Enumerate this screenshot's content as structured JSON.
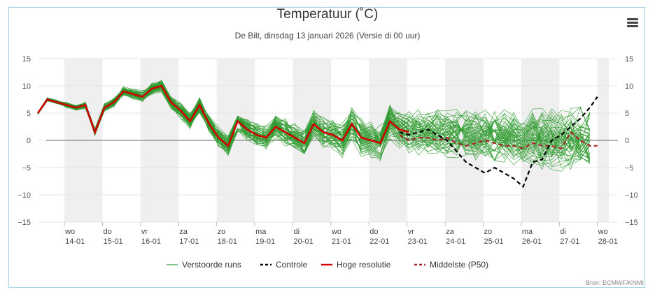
{
  "page": {
    "title": "Temperatuur (˚C)",
    "subtitle": "De Bilt, dinsdag 13 januari 2026 (Versie di 00 uur)",
    "credit": "Bron: ECMWF/KNMI",
    "menu_icon": "hamburger-menu-icon"
  },
  "chart_data": {
    "type": "line",
    "title": "Temperatuur (˚C)",
    "subtitle": "De Bilt, dinsdag 13 januari 2026 (Versie di 00 uur)",
    "ylim": [
      -15,
      15
    ],
    "yticks": [
      15,
      10,
      5,
      0,
      -5,
      -10,
      -15
    ],
    "xrange": [
      0,
      14.7
    ],
    "x_ticks": [
      {
        "x": 0.7,
        "day": "wo",
        "date": "14-01"
      },
      {
        "x": 1.7,
        "day": "do",
        "date": "15-01"
      },
      {
        "x": 2.7,
        "day": "vr",
        "date": "16-01"
      },
      {
        "x": 3.7,
        "day": "za",
        "date": "17-01"
      },
      {
        "x": 4.7,
        "day": "zo",
        "date": "18-01"
      },
      {
        "x": 5.7,
        "day": "ma",
        "date": "19-01"
      },
      {
        "x": 6.7,
        "day": "di",
        "date": "20-01"
      },
      {
        "x": 7.7,
        "day": "wo",
        "date": "21-01"
      },
      {
        "x": 8.7,
        "day": "do",
        "date": "22-01"
      },
      {
        "x": 9.7,
        "day": "vr",
        "date": "23-01"
      },
      {
        "x": 10.7,
        "day": "za",
        "date": "24-01"
      },
      {
        "x": 11.7,
        "day": "zo",
        "date": "25-01"
      },
      {
        "x": 12.7,
        "day": "ma",
        "date": "26-01"
      },
      {
        "x": 13.7,
        "day": "di",
        "date": "27-01"
      },
      {
        "x": 14.7,
        "day": "wo",
        "date": "28-01"
      }
    ],
    "bands": [
      [
        0.7,
        1.7
      ],
      [
        2.7,
        3.7
      ],
      [
        4.7,
        5.7
      ],
      [
        6.7,
        7.7
      ],
      [
        8.7,
        9.7
      ],
      [
        10.7,
        11.7
      ],
      [
        12.7,
        13.7
      ],
      [
        14.7,
        15.0
      ]
    ],
    "zero_line": 0,
    "legend": [
      {
        "name": "Verstoorde runs",
        "color": "#2e9a2e",
        "dash": "none"
      },
      {
        "name": "Controle",
        "color": "#000000",
        "dash": "6,4"
      },
      {
        "name": "Hoge resolutie",
        "color": "#d00000",
        "dash": "none"
      },
      {
        "name": "Middelste (P50)",
        "color": "#a52a2a",
        "dash": "6,4"
      }
    ],
    "legend_position": "bottom",
    "grid": true,
    "hires": {
      "x": [
        0,
        0.25,
        0.5,
        0.75,
        1.0,
        1.25,
        1.5,
        1.75,
        2.0,
        2.25,
        2.5,
        2.75,
        3.0,
        3.25,
        3.5,
        3.75,
        4.0,
        4.25,
        4.5,
        4.75,
        5.0,
        5.25,
        5.5,
        5.75,
        6.0,
        6.25,
        6.5,
        6.75,
        7.0,
        7.25,
        7.5,
        7.75,
        8.0,
        8.25,
        8.5,
        8.75,
        9.0,
        9.25,
        9.5,
        9.75
      ],
      "y": [
        5,
        7.5,
        7,
        6.5,
        6,
        6.5,
        1.5,
        6,
        7,
        9,
        8.5,
        8,
        9.5,
        10,
        7,
        5.5,
        3.5,
        6.5,
        3,
        0.5,
        -1,
        3.5,
        2,
        1,
        0.5,
        2.5,
        1.5,
        0.5,
        -0.5,
        3,
        1.5,
        1,
        0,
        3,
        0.5,
        0,
        -0.5,
        3.5,
        2,
        1.5
      ]
    },
    "controle": {
      "x": [
        9.5,
        9.75,
        10.0,
        10.25,
        10.5,
        10.75,
        11.0,
        11.25,
        11.5,
        11.75,
        12.0,
        12.25,
        12.5,
        12.75,
        13.0,
        13.25,
        13.5,
        13.75,
        14.0,
        14.25,
        14.5,
        14.7
      ],
      "y": [
        1.5,
        1,
        1.5,
        2,
        1,
        0,
        -2,
        -4,
        -5,
        -6,
        -5,
        -6,
        -7,
        -8.5,
        -4,
        -3.5,
        0,
        1,
        2.5,
        4,
        6,
        8
      ]
    },
    "p50": {
      "x": [
        9.5,
        9.75,
        10.0,
        10.25,
        10.5,
        10.75,
        11.0,
        11.25,
        11.5,
        11.75,
        12.0,
        12.25,
        12.5,
        12.75,
        13.0,
        13.25,
        13.5,
        13.75,
        14.0,
        14.25,
        14.5,
        14.7
      ],
      "y": [
        1,
        0,
        0.5,
        0.5,
        0,
        0.5,
        -0.5,
        -1,
        -0.5,
        0,
        -0.5,
        -1,
        -1,
        -1.5,
        -0.5,
        -1,
        -1,
        -1.5,
        1.5,
        0,
        -1,
        -1
      ]
    },
    "members_count": 50
  }
}
